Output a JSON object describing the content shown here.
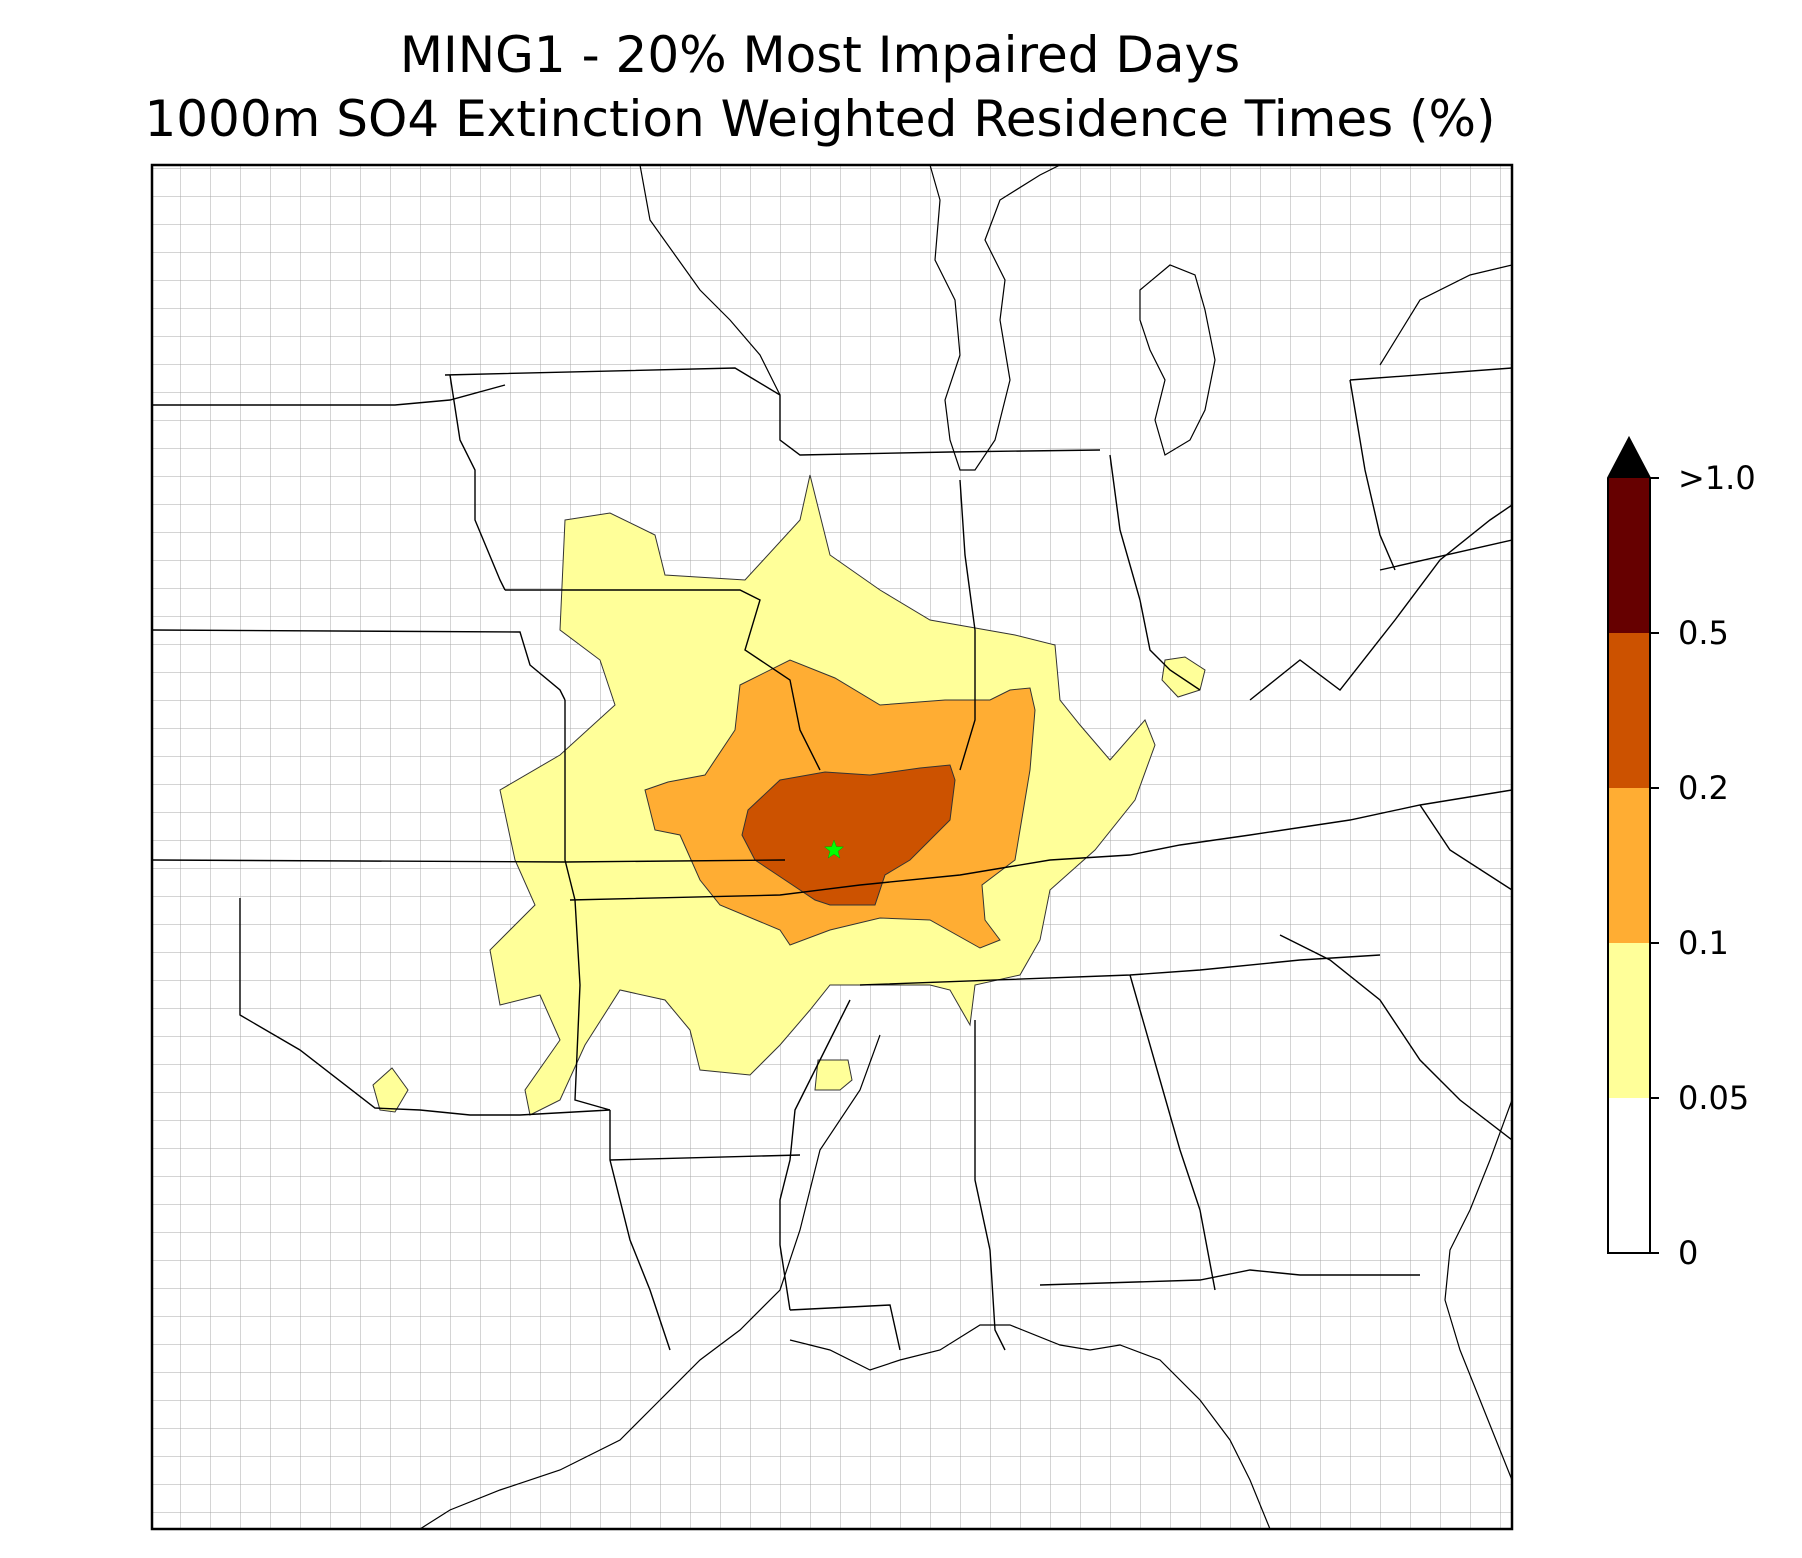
{
  "title_line1": "MING1 - 20% Most Impaired Days",
  "title_line2": "1000m SO4 Extinction Weighted Residence Times (%)",
  "site_marker": {
    "symbol": "star",
    "color": "#00ff00"
  },
  "colorbar": {
    "extend": "max",
    "levels": [
      {
        "label": "0",
        "value": 0
      },
      {
        "label": "0.05",
        "value": 0.05
      },
      {
        "label": "0.1",
        "value": 0.1
      },
      {
        "label": "0.2",
        "value": 0.2
      },
      {
        "label": "0.5",
        "value": 0.5
      },
      {
        "label": ">1.0",
        "value": 1.0
      }
    ],
    "bins": [
      {
        "range": "0-0.05",
        "color": "#ffffff"
      },
      {
        "range": "0.05-0.1",
        "color": "#ffff99"
      },
      {
        "range": "0.1-0.2",
        "color": "#ffad33"
      },
      {
        "range": "0.2-0.5",
        "color": "#cc5200"
      },
      {
        "range": "0.5-1.0",
        "color": "#660000"
      },
      {
        "range": ">1.0",
        "color": "#000000"
      }
    ]
  },
  "map_colors": {
    "state_border": "#000000",
    "county_border": "#a0a0a0",
    "frame": "#000000"
  }
}
